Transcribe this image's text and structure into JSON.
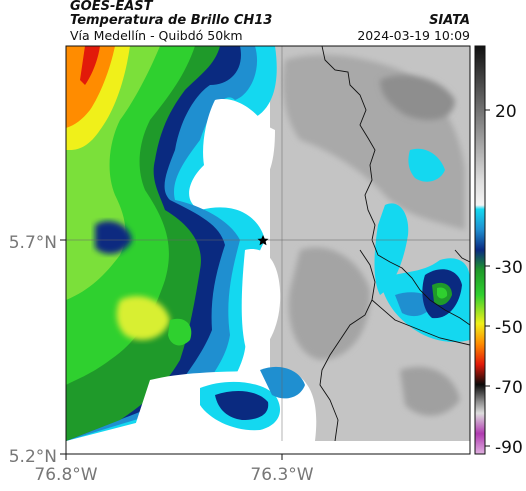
{
  "header": {
    "satellite": "GOES-EAST",
    "product": "Temperatura de Brillo CH13",
    "route": "Vía Medellín - Quibdó 50km",
    "agency": "SIATA",
    "datetime": "2024-03-19 10:09"
  },
  "axes": {
    "y_ticks": [
      "5.7°N",
      "5.2°N"
    ],
    "x_ticks": [
      "76.8°W",
      "76.3°W"
    ]
  },
  "colorbar": {
    "ticks": [
      "20",
      "-30",
      "-50",
      "-70",
      "-90"
    ],
    "colors": {
      "gray_light": "#e8e8e8",
      "gray_dark": "#222222",
      "cyan": "#14d8f0",
      "blue": "#1f8fd0",
      "navy": "#0a2a80",
      "green_dark": "#1f9a2a",
      "green": "#2fd02f",
      "yellow": "#f0f01a",
      "orange": "#ff8c00",
      "red": "#e21a0a",
      "black": "#0a0a0a",
      "magenta": "#b03ab0"
    }
  },
  "map": {
    "marker": "star-icon"
  }
}
